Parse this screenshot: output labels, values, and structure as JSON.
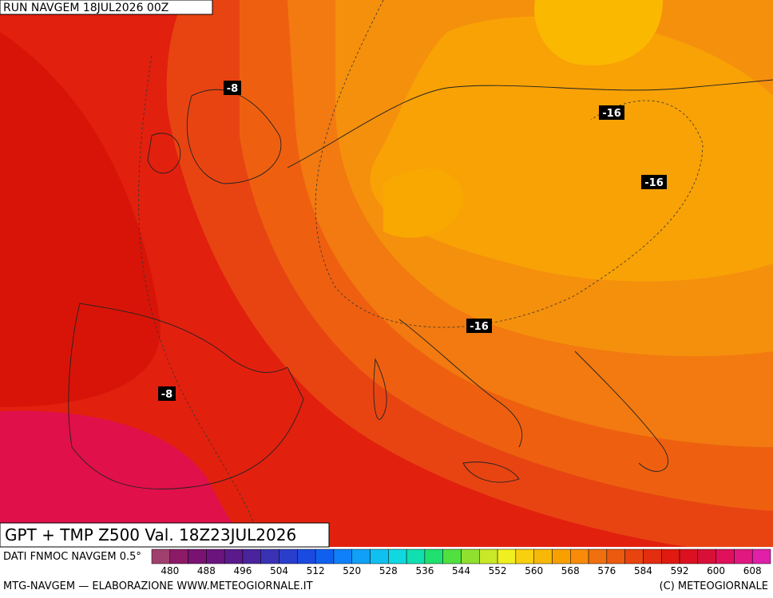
{
  "header": {
    "run": "RUN NAVGEM 18JUL2026 00Z"
  },
  "title": "GPT + TMP Z500 Val. 18Z23JUL2026",
  "contour_labels": [
    "-8",
    "-8",
    "-16",
    "-16",
    "-16"
  ],
  "colorbar": {
    "source": "DATI FNMOC NAVGEM 0.5°",
    "ticks": [
      480,
      488,
      496,
      504,
      512,
      520,
      528,
      536,
      544,
      552,
      560,
      568,
      576,
      584,
      592,
      600,
      608
    ],
    "colors": [
      "#a0406e",
      "#8c1a66",
      "#7a1272",
      "#6c147e",
      "#5a1a8c",
      "#4a249c",
      "#3a32b4",
      "#2a3ecc",
      "#1a4ae0",
      "#1060f0",
      "#1080f8",
      "#10a0f8",
      "#10c0f0",
      "#10d8e0",
      "#10e0b0",
      "#20e070",
      "#50e040",
      "#90e030",
      "#c8e828",
      "#f0f020",
      "#f8d010",
      "#f8b808",
      "#f8a000",
      "#f88c08",
      "#f07010",
      "#ec5a10",
      "#e84410",
      "#e42e10",
      "#e01a10",
      "#dc1020",
      "#d81038",
      "#e0105a",
      "#e01880",
      "#e020a8"
    ]
  },
  "footer": {
    "left": "MTG-NAVGEM — ELABORAZIONE WWW.METEOGIORNALE.IT",
    "right": "(C) METEOGIORNALE"
  }
}
